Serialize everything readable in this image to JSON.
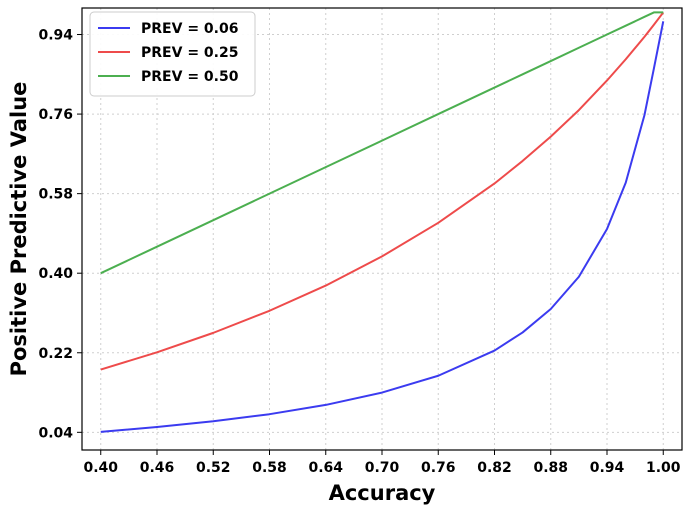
{
  "chart_data": {
    "type": "line",
    "xlabel": "Accuracy",
    "ylabel": "Positive Predictive Value",
    "xlim": [
      0.38,
      1.02
    ],
    "ylim": [
      0.0,
      1.0
    ],
    "xticks": [
      "0.40",
      "0.46",
      "0.52",
      "0.58",
      "0.64",
      "0.70",
      "0.76",
      "0.82",
      "0.88",
      "0.94",
      "1.00"
    ],
    "yticks": [
      "0.04",
      "0.22",
      "0.40",
      "0.58",
      "0.76",
      "0.94"
    ],
    "grid": true,
    "legend_position": "top-left",
    "x": [
      0.4,
      0.46,
      0.52,
      0.58,
      0.64,
      0.7,
      0.76,
      0.82,
      0.85,
      0.88,
      0.91,
      0.94,
      0.96,
      0.98,
      0.99,
      1.0
    ],
    "series": [
      {
        "name": "PREV = 0.06",
        "color": "#3b3bf0",
        "values": [
          0.041,
          0.052,
          0.065,
          0.081,
          0.102,
          0.13,
          0.168,
          0.225,
          0.266,
          0.319,
          0.392,
          0.5,
          0.605,
          0.758,
          0.863,
          0.97
        ]
      },
      {
        "name": "PREV = 0.25",
        "color": "#ee4b4b",
        "values": [
          0.182,
          0.221,
          0.265,
          0.315,
          0.372,
          0.438,
          0.514,
          0.603,
          0.654,
          0.709,
          0.769,
          0.836,
          0.884,
          0.935,
          0.962,
          0.99
        ]
      },
      {
        "name": "PREV = 0.50",
        "color": "#4caf50",
        "values": [
          0.4,
          0.46,
          0.52,
          0.58,
          0.64,
          0.7,
          0.76,
          0.82,
          0.85,
          0.88,
          0.91,
          0.94,
          0.96,
          0.98,
          0.99,
          0.99
        ]
      }
    ]
  }
}
